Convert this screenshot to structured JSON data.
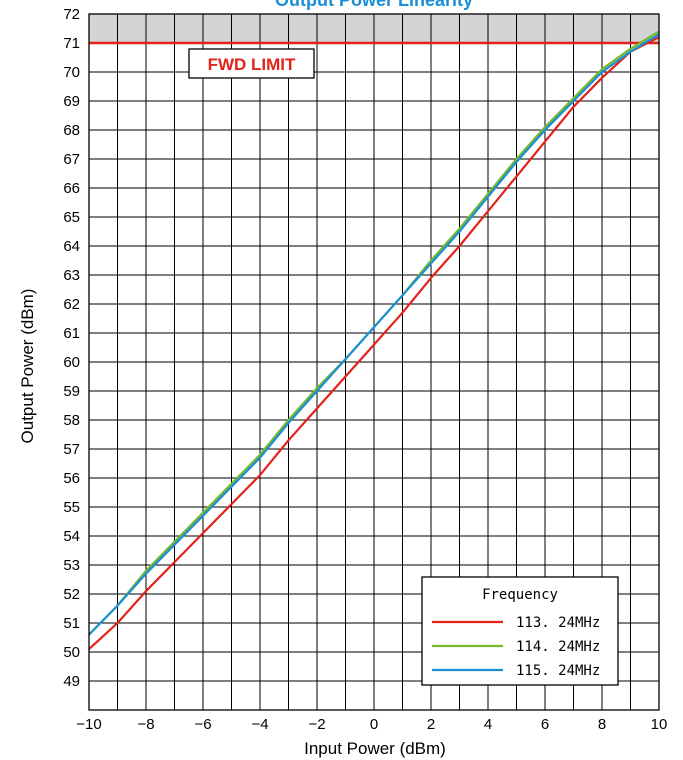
{
  "chart_data": {
    "type": "line",
    "title": "Output Power Linearity",
    "xlabel": "Input Power (dBm)",
    "ylabel": "Output Power (dBm)",
    "xlim": [
      -10,
      10
    ],
    "ylim": [
      48,
      72
    ],
    "x_ticks": [
      -10,
      -8,
      -6,
      -4,
      -2,
      0,
      2,
      4,
      6,
      8,
      10
    ],
    "x_tick_labels": [
      "−10",
      "−8",
      "−6",
      "−4",
      "−2",
      "0",
      "2",
      "4",
      "6",
      "8",
      "10"
    ],
    "y_ticks": [
      49,
      50,
      51,
      52,
      53,
      54,
      55,
      56,
      57,
      58,
      59,
      60,
      61,
      62,
      63,
      64,
      65,
      66,
      67,
      68,
      69,
      70,
      71,
      72
    ],
    "grid": true,
    "legend_title": "Frequency",
    "legend_position": "bottom-right",
    "annotation_label": "FWD LIMIT",
    "limit_value": 71,
    "colors": {
      "limit": "#e32219",
      "shade": "#d3d4d6",
      "title": "#1a8fd6"
    },
    "series": [
      {
        "name": "113. 24MHz",
        "color": "#e32219",
        "x": [
          -10,
          -9,
          -8,
          -7,
          -6,
          -5,
          -4,
          -3,
          -2,
          -1,
          0,
          1,
          2,
          3,
          4,
          5,
          6,
          7,
          8,
          9,
          10
        ],
        "y": [
          50.1,
          51.0,
          52.1,
          53.1,
          54.1,
          55.1,
          56.1,
          57.3,
          58.4,
          59.5,
          60.6,
          61.7,
          62.9,
          64.0,
          65.2,
          66.4,
          67.6,
          68.8,
          69.8,
          70.7,
          71.2
        ]
      },
      {
        "name": "114. 24MHz",
        "color": "#76b82a",
        "x": [
          -10,
          -9,
          -8,
          -7,
          -6,
          -5,
          -4,
          -3,
          -2,
          -1,
          0,
          1,
          2,
          3,
          4,
          5,
          6,
          7,
          8,
          9,
          10
        ],
        "y": [
          50.6,
          51.6,
          52.8,
          53.8,
          54.8,
          55.8,
          56.8,
          58.0,
          59.1,
          60.1,
          61.2,
          62.3,
          63.5,
          64.6,
          65.8,
          67.0,
          68.1,
          69.1,
          70.1,
          70.8,
          71.4
        ]
      },
      {
        "name": "115. 24MHz",
        "color": "#1a8fd6",
        "x": [
          -10,
          -9,
          -8,
          -7,
          -6,
          -5,
          -4,
          -3,
          -2,
          -1,
          0,
          1,
          2,
          3,
          4,
          5,
          6,
          7,
          8,
          9,
          10
        ],
        "y": [
          50.6,
          51.6,
          52.7,
          53.7,
          54.7,
          55.7,
          56.7,
          57.9,
          59.0,
          60.1,
          61.2,
          62.3,
          63.4,
          64.5,
          65.7,
          66.9,
          68.0,
          69.0,
          70.0,
          70.7,
          71.3
        ]
      }
    ]
  }
}
